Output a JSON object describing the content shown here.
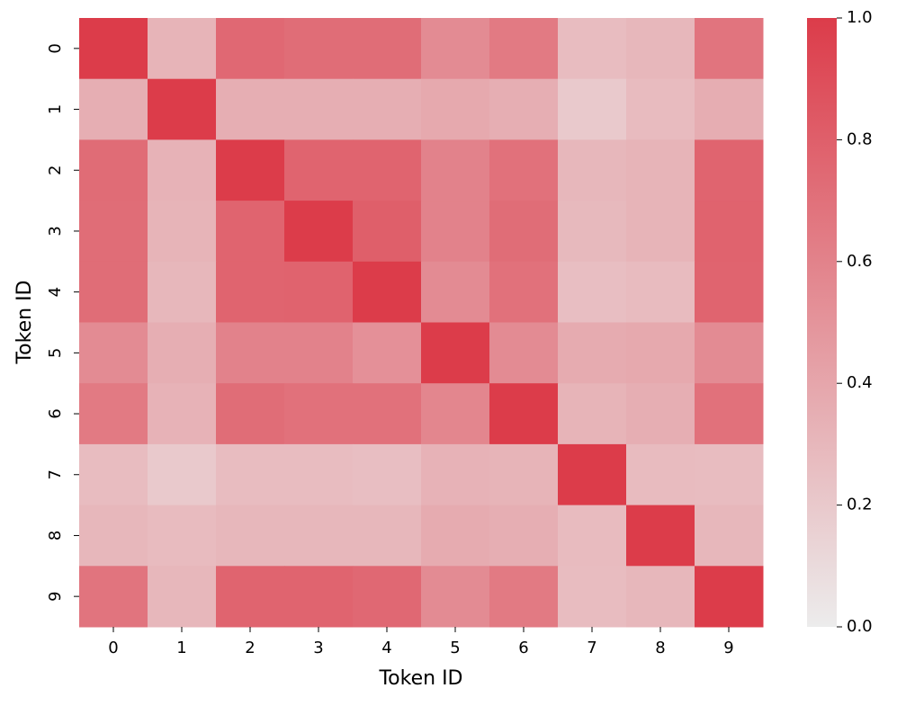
{
  "chart_data": {
    "type": "heatmap",
    "xlabel": "Token ID",
    "ylabel": "Token ID",
    "x_categories": [
      "0",
      "1",
      "2",
      "3",
      "4",
      "5",
      "6",
      "7",
      "8",
      "9"
    ],
    "y_categories": [
      "0",
      "1",
      "2",
      "3",
      "4",
      "5",
      "6",
      "7",
      "8",
      "9"
    ],
    "values": [
      [
        1.0,
        0.32,
        0.75,
        0.72,
        0.72,
        0.55,
        0.65,
        0.27,
        0.3,
        0.68
      ],
      [
        0.35,
        1.0,
        0.35,
        0.35,
        0.35,
        0.38,
        0.35,
        0.2,
        0.28,
        0.36
      ],
      [
        0.73,
        0.33,
        1.0,
        0.77,
        0.77,
        0.6,
        0.7,
        0.3,
        0.32,
        0.77
      ],
      [
        0.72,
        0.32,
        0.77,
        1.0,
        0.8,
        0.6,
        0.72,
        0.29,
        0.32,
        0.78
      ],
      [
        0.72,
        0.3,
        0.77,
        0.78,
        1.0,
        0.55,
        0.7,
        0.26,
        0.28,
        0.77
      ],
      [
        0.55,
        0.35,
        0.6,
        0.6,
        0.52,
        1.0,
        0.55,
        0.37,
        0.38,
        0.55
      ],
      [
        0.65,
        0.33,
        0.72,
        0.7,
        0.7,
        0.58,
        1.0,
        0.32,
        0.35,
        0.7
      ],
      [
        0.27,
        0.2,
        0.27,
        0.27,
        0.26,
        0.33,
        0.32,
        1.0,
        0.28,
        0.27
      ],
      [
        0.3,
        0.28,
        0.3,
        0.3,
        0.3,
        0.37,
        0.35,
        0.28,
        1.0,
        0.3
      ],
      [
        0.68,
        0.3,
        0.77,
        0.77,
        0.75,
        0.55,
        0.65,
        0.27,
        0.3,
        1.0
      ]
    ],
    "colormap": [
      "#ececec",
      "#dc3c4a"
    ],
    "zlim": [
      0,
      1
    ],
    "zticks": [
      {
        "value": 0,
        "label": "0.0"
      },
      0.2,
      0.4,
      0.6,
      0.8,
      {
        "value": 1,
        "label": "1.0"
      }
    ]
  }
}
